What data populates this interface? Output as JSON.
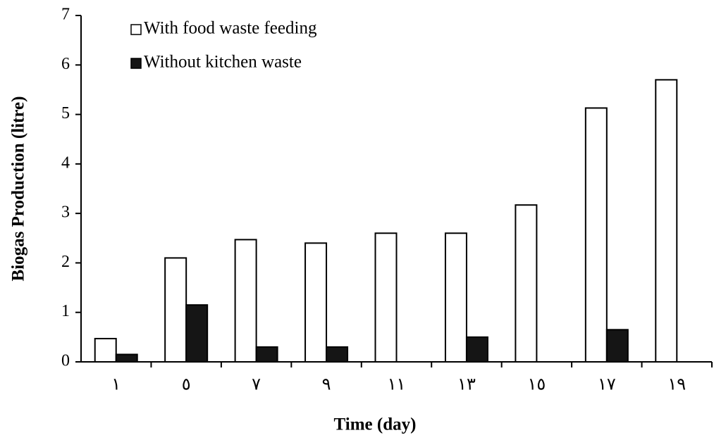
{
  "chart_data": {
    "type": "bar",
    "x_label": "Time (day)",
    "y_label": "Biogas Production (litre)",
    "categories": [
      "١",
      "٥",
      "٧",
      "٩",
      "١١",
      "١٣",
      "١٥",
      "١٧",
      "١٩"
    ],
    "series": [
      {
        "name": "With food waste feeding",
        "color": "#ffffff",
        "values": [
          0.47,
          2.1,
          2.47,
          2.4,
          2.6,
          2.6,
          3.17,
          5.13,
          5.7
        ]
      },
      {
        "name": "Without kitchen waste",
        "color": "#151515",
        "values": [
          0.15,
          1.15,
          0.3,
          0.3,
          0,
          0.5,
          0,
          0.65,
          0
        ]
      }
    ],
    "ylim": [
      0,
      7
    ],
    "yticks": [
      0,
      1,
      2,
      3,
      4,
      5,
      6,
      7
    ],
    "grid": false,
    "legend": "top-left"
  }
}
